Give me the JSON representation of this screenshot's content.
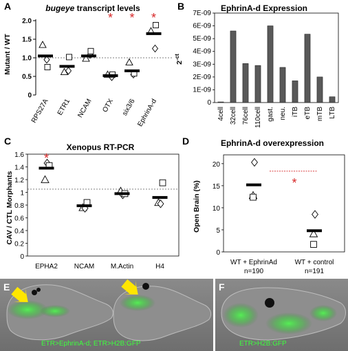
{
  "colors": {
    "asterisk": "#d62728",
    "bar": "#595959",
    "gfp": "#3dff3d",
    "arrow": "#ffe600"
  },
  "chart_data": [
    {
      "panel": "A",
      "type": "scatter",
      "title_prefix": "bugeye",
      "title_suffix": " transcript levels",
      "ylabel": "Mutant / WT",
      "ylim": [
        0,
        2.0
      ],
      "yticks": [
        "0",
        "0.5",
        "1.0",
        "1.5",
        "2.0"
      ],
      "reference_line": 1.0,
      "categories": [
        "RPS27A",
        "ETR1",
        "NCAM",
        "OTX",
        "six3/6",
        "EphrinA-d"
      ],
      "means": [
        1.05,
        0.77,
        1.05,
        0.52,
        0.65,
        1.65
      ],
      "points": [
        {
          "triangle": 1.35,
          "diamond": 0.95,
          "square": 0.75
        },
        {
          "triangle": 0.62,
          "diamond": 0.65,
          "square": 1.02
        },
        {
          "triangle": 0.98,
          "diamond": 1.08,
          "square": 1.18
        },
        {
          "triangle": 0.55,
          "diamond": 0.48,
          "square": 0.55
        },
        {
          "triangle": 0.88,
          "diamond": 0.55,
          "square": 0.58
        },
        {
          "triangle": 1.72,
          "diamond": 1.25,
          "square": 1.88
        }
      ],
      "significant": [
        "OTX",
        "six3/6",
        "EphrinA-d"
      ],
      "asterisk": "*"
    },
    {
      "panel": "B",
      "type": "bar",
      "title": "EphrinA-d Expression",
      "ylabel": "2-ct",
      "ylabel_base": "2",
      "ylabel_sup": "-ct",
      "ylim": [
        0,
        7e-09
      ],
      "yticks": [
        "0",
        "1E-09",
        "2E-09",
        "3E-09",
        "4E-09",
        "5E-09",
        "6E-09",
        "7E-09"
      ],
      "categories": [
        "4cell",
        "32cell",
        "76cell",
        "110cell",
        "gast.",
        "neu.",
        "iTB",
        "eTB",
        "mTB",
        "LTB"
      ],
      "values": [
        5e-11,
        5.6e-09,
        3.05e-09,
        2.9e-09,
        6e-09,
        2.75e-09,
        1.7e-09,
        5.35e-09,
        2e-09,
        4.5e-10
      ]
    },
    {
      "panel": "C",
      "type": "scatter",
      "title": "Xenopus RT-PCR",
      "ylabel": "CAV / CTL Morphants",
      "ylim": [
        0,
        1.6
      ],
      "yticks": [
        "0",
        "0.2",
        "0.4",
        "0.6",
        "0.8",
        "1",
        "1.2",
        "1.4",
        "1.6"
      ],
      "reference_line": 1.05,
      "categories": [
        "EPHA2",
        "NCAM",
        "M.Actin",
        "H4"
      ],
      "means": [
        1.38,
        0.79,
        0.98,
        0.92
      ],
      "points": [
        {
          "triangle": 1.2,
          "diamond": 1.46,
          "square": 1.42
        },
        {
          "triangle": 0.76,
          "diamond": 0.75,
          "square": 0.84
        },
        {
          "triangle": 1.02,
          "diamond": 0.96,
          "square": 0.98
        },
        {
          "triangle": 0.84,
          "diamond": 0.82,
          "square": 1.15
        }
      ],
      "significant": [
        "EPHA2"
      ],
      "asterisk": "*"
    },
    {
      "panel": "D",
      "type": "scatter",
      "title": "EphrinA-d overexpression",
      "ylabel": "Open Brain (%)",
      "ylim": [
        0,
        22
      ],
      "yticks": [
        "0",
        "5",
        "10",
        "15",
        "20"
      ],
      "categories": [
        "WT + EphrinAd",
        "WT + control"
      ],
      "counts": [
        "n=190",
        "n=191"
      ],
      "means": [
        15.2,
        4.8
      ],
      "points": [
        {
          "triangle": 12.8,
          "diamond": 20.3,
          "square": 12.4
        },
        {
          "triangle": 4.1,
          "diamond": 8.5,
          "square": 1.7
        }
      ],
      "asterisk": "*"
    }
  ],
  "micrographs": {
    "E": {
      "letter": "E",
      "label": "ETR>EphrinA-d; ETR>H2B:GFP"
    },
    "F": {
      "letter": "F",
      "label": "ETR>H2B:GFP"
    }
  }
}
